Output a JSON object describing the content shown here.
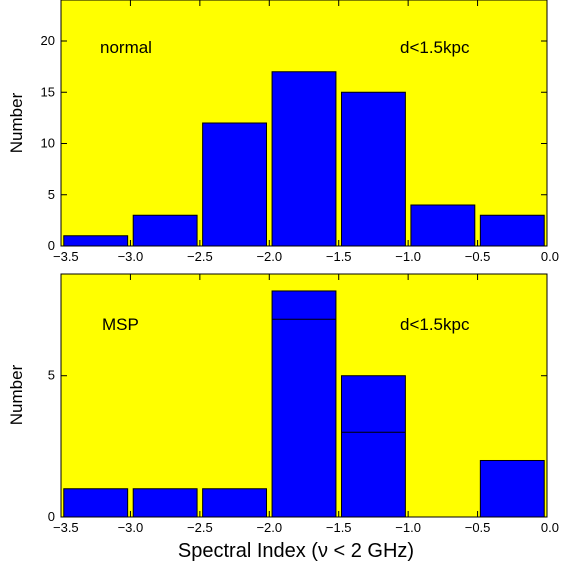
{
  "colors": {
    "panel_bg": "#ffff00",
    "bar": "#0000ff",
    "stroke": "#000000"
  },
  "chart_data": [
    {
      "type": "bar",
      "annotation_left": "normal",
      "annotation_right": "d<1.5kpc",
      "xlabel": "",
      "ylabel": "Number",
      "xlim": [
        -3.5,
        0.0
      ],
      "ylim": [
        0,
        24
      ],
      "xticks": [
        -3.5,
        -3.0,
        -2.5,
        -2.0,
        -1.5,
        -1.0,
        -0.5,
        0.0
      ],
      "xtick_labels": [
        "−3.5",
        "−3.0",
        "−2.5",
        "−2.0",
        "−1.5",
        "−1.0",
        "−0.5",
        "0.0"
      ],
      "yticks": [
        0,
        5,
        10,
        15,
        20
      ],
      "ytick_labels": [
        "0",
        "5",
        "10",
        "15",
        "20"
      ],
      "bin_centers": [
        -3.25,
        -2.75,
        -2.25,
        -1.75,
        -1.25,
        -0.75,
        -0.25
      ],
      "bin_width": 0.5,
      "values": [
        1,
        3,
        12,
        17,
        15,
        4,
        3
      ],
      "grid": false,
      "legend": "none"
    },
    {
      "type": "bar",
      "annotation_left": "MSP",
      "annotation_right": "d<1.5kpc",
      "xlabel": "Spectral Index (ν < 2 GHz)",
      "ylabel": "Number",
      "xlim": [
        -3.5,
        0.0
      ],
      "ylim": [
        0,
        8.6
      ],
      "xticks": [
        -3.5,
        -3.0,
        -2.5,
        -2.0,
        -1.5,
        -1.0,
        -0.5,
        0.0
      ],
      "xtick_labels": [
        "−3.5",
        "−3.0",
        "−2.5",
        "−2.0",
        "−1.5",
        "−1.0",
        "−0.5",
        "0.0"
      ],
      "yticks": [
        0,
        5
      ],
      "ytick_labels": [
        "0",
        "5"
      ],
      "bin_centers": [
        -3.25,
        -2.75,
        -2.25,
        -1.75,
        -1.25,
        -0.75,
        -0.25
      ],
      "bin_width": 0.5,
      "values": [
        1,
        1,
        1,
        8,
        5,
        0,
        2
      ],
      "inner_lines": [
        null,
        null,
        null,
        7,
        3,
        null,
        null
      ],
      "grid": false,
      "legend": "none"
    }
  ]
}
